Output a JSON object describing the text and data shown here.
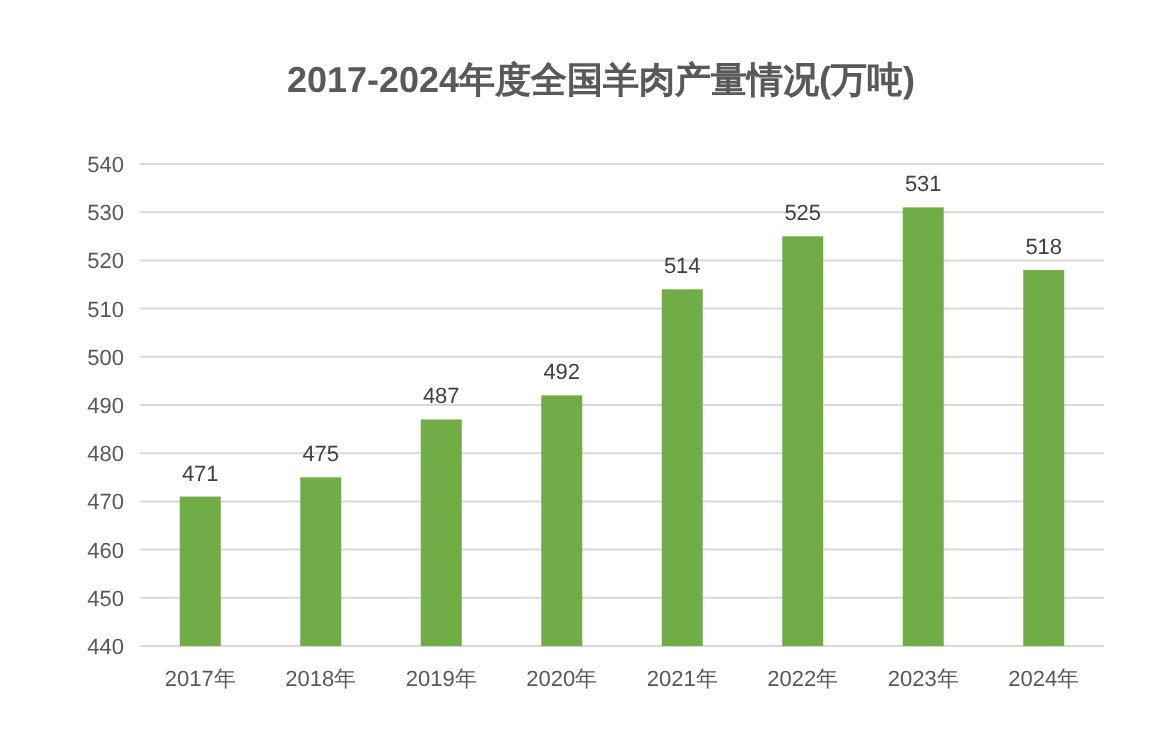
{
  "chart_data": {
    "type": "bar",
    "title": "2017-2024年度全国羊肉产量情况(万吨)",
    "categories": [
      "2017年",
      "2018年",
      "2019年",
      "2020年",
      "2021年",
      "2022年",
      "2023年",
      "2024年"
    ],
    "values": [
      471,
      475,
      487,
      492,
      514,
      525,
      531,
      518
    ],
    "color": "#70ad47",
    "ylim": [
      440,
      540
    ],
    "yticks": [
      440,
      450,
      460,
      470,
      480,
      490,
      500,
      510,
      520,
      530,
      540
    ],
    "grid": "y",
    "data_labels": true
  }
}
